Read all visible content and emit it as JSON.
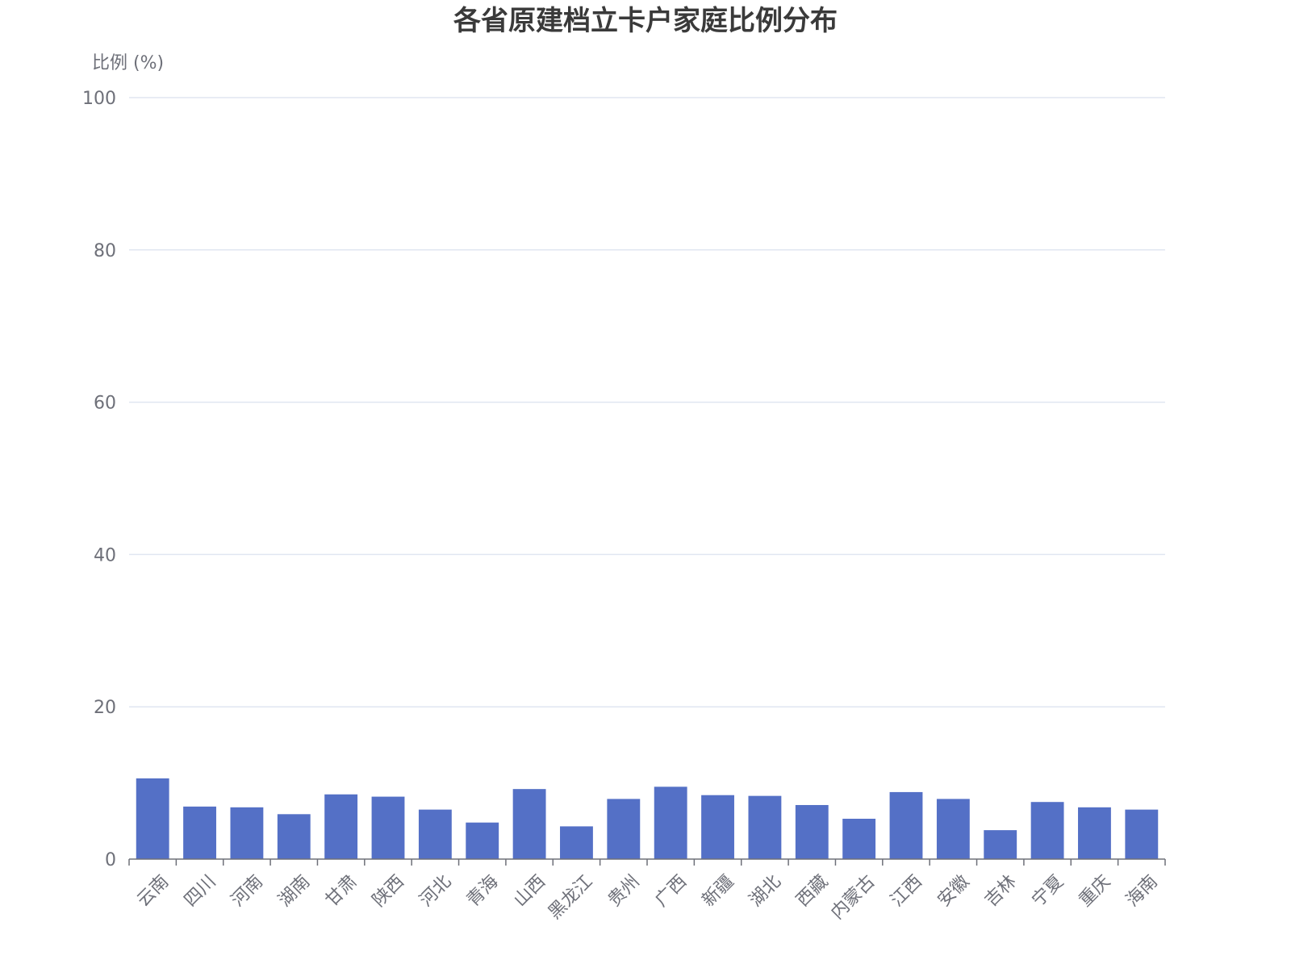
{
  "chart_data": {
    "type": "bar",
    "title": "各省原建档立卡户家庭比例分布",
    "ylabel": "比例 (%)",
    "xlabel": "",
    "ylim": [
      0,
      100
    ],
    "yticks": [
      0,
      20,
      40,
      60,
      80,
      100
    ],
    "grid": true,
    "bar_color": "#5470c6",
    "categories": [
      "云南",
      "四川",
      "河南",
      "湖南",
      "甘肃",
      "陕西",
      "河北",
      "青海",
      "山西",
      "黑龙江",
      "贵州",
      "广西",
      "新疆",
      "湖北",
      "西藏",
      "内蒙古",
      "江西",
      "安徽",
      "吉林",
      "宁夏",
      "重庆",
      "海南"
    ],
    "values": [
      10.6,
      6.9,
      6.8,
      5.9,
      8.5,
      8.2,
      6.5,
      4.8,
      9.2,
      4.3,
      7.9,
      9.5,
      8.4,
      8.3,
      7.1,
      5.3,
      8.8,
      7.9,
      3.8,
      7.5,
      6.8,
      6.5
    ]
  }
}
